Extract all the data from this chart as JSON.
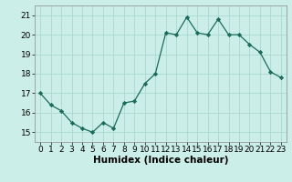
{
  "x": [
    0,
    1,
    2,
    3,
    4,
    5,
    6,
    7,
    8,
    9,
    10,
    11,
    12,
    13,
    14,
    15,
    16,
    17,
    18,
    19,
    20,
    21,
    22,
    23
  ],
  "y": [
    17.0,
    16.4,
    16.1,
    15.5,
    15.2,
    15.0,
    15.5,
    15.2,
    16.5,
    16.6,
    17.5,
    18.0,
    20.1,
    20.0,
    20.9,
    20.1,
    20.0,
    20.8,
    20.0,
    20.0,
    19.5,
    19.1,
    18.1,
    17.8
  ],
  "line_color": "#1a6b5a",
  "marker": "D",
  "marker_size": 2.2,
  "bg_color": "#cceee8",
  "grid_color": "#aad8d0",
  "xlabel": "Humidex (Indice chaleur)",
  "xlabel_fontsize": 7.5,
  "tick_fontsize": 6.5,
  "xlim": [
    -0.5,
    23.5
  ],
  "ylim": [
    14.5,
    21.5
  ],
  "yticks": [
    15,
    16,
    17,
    18,
    19,
    20,
    21
  ],
  "xticks": [
    0,
    1,
    2,
    3,
    4,
    5,
    6,
    7,
    8,
    9,
    10,
    11,
    12,
    13,
    14,
    15,
    16,
    17,
    18,
    19,
    20,
    21,
    22,
    23
  ]
}
